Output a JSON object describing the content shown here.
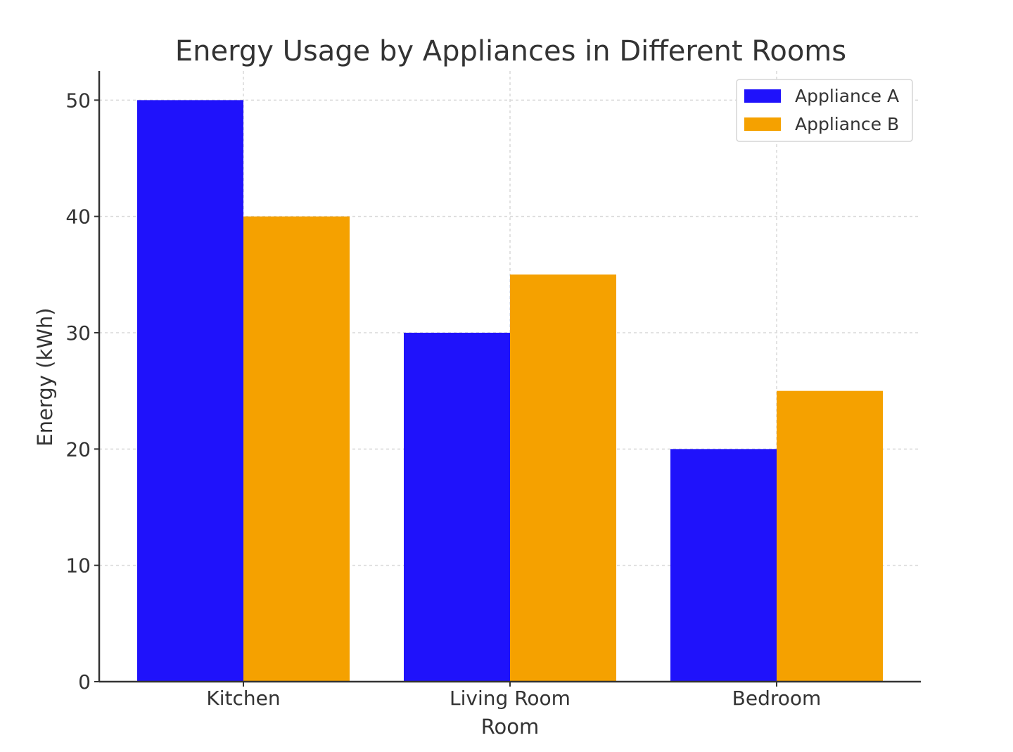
{
  "chart_data": {
    "type": "bar",
    "title": "Energy Usage by Appliances in Different Rooms",
    "xlabel": "Room",
    "ylabel": "Energy (kWh)",
    "categories": [
      "Kitchen",
      "Living Room",
      "Bedroom"
    ],
    "series": [
      {
        "name": "Appliance A",
        "values": [
          50,
          30,
          20
        ],
        "color": "#1f12fb"
      },
      {
        "name": "Appliance B",
        "values": [
          40,
          35,
          25
        ],
        "color": "#f5a100"
      }
    ],
    "ylim": [
      0,
      52.5
    ],
    "yticks": [
      0,
      10,
      20,
      30,
      40,
      50
    ],
    "grid": true,
    "legend_position": "top-right"
  }
}
